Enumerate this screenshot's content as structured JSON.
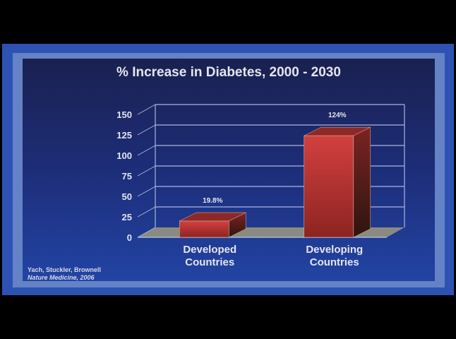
{
  "chart_data": {
    "type": "bar",
    "title": "% Increase in Diabetes, 2000 - 2030",
    "categories": [
      "Developed Countries",
      "Developing Countries"
    ],
    "category_lines": [
      [
        "Developed",
        "Countries"
      ],
      [
        "Developing",
        "Countries"
      ]
    ],
    "values": [
      19.8,
      124
    ],
    "data_labels": [
      "19.8%",
      "124%"
    ],
    "yticks": [
      0,
      25,
      50,
      75,
      100,
      125,
      150
    ],
    "ylim": [
      0,
      150
    ],
    "xlabel": "",
    "ylabel": "",
    "grid": true,
    "colors": {
      "bar": "#c83a38",
      "floor": "#8a8a80",
      "grid": "#aab4e0"
    }
  },
  "citation": {
    "authors": "Yach, Stuckler, Brownell",
    "journal": "Nature Medicine, 2006"
  }
}
